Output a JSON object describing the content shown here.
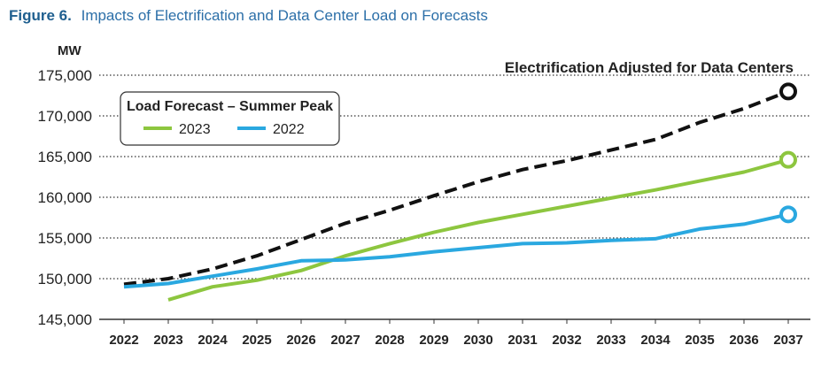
{
  "figure": {
    "label": "Figure 6.",
    "title": "Impacts of Electrification and Data Center Load on Forecasts"
  },
  "chart_data": {
    "type": "line",
    "ylabel": "MW",
    "ylim": [
      145000,
      175000
    ],
    "yticks": [
      175000,
      170000,
      165000,
      160000,
      155000,
      150000,
      145000
    ],
    "ytick_labels": [
      "175,000",
      "170,000",
      "165,000",
      "160,000",
      "155,000",
      "150,000",
      "145,000"
    ],
    "x": [
      2022,
      2023,
      2024,
      2025,
      2026,
      2027,
      2028,
      2029,
      2030,
      2031,
      2032,
      2033,
      2034,
      2035,
      2036,
      2037
    ],
    "x_labels": [
      "2022",
      "2023",
      "2024",
      "2025",
      "2026",
      "2027",
      "2028",
      "2029",
      "2030",
      "2031",
      "2032",
      "2033",
      "2034",
      "2035",
      "2036",
      "2037"
    ],
    "grid": "horizontal dotted",
    "legend": {
      "title": "Load Forecast – Summer Peak",
      "placement": "top-left"
    },
    "series": [
      {
        "name": "Electrification Adjusted for Data Centers",
        "color": "#111111",
        "style": "dashed",
        "in_legend": false,
        "x": [
          2022,
          2023,
          2024,
          2025,
          2026,
          2027,
          2028,
          2029,
          2030,
          2031,
          2032,
          2033,
          2034,
          2035,
          2036,
          2037
        ],
        "values": [
          149300,
          150000,
          151200,
          152800,
          154800,
          156800,
          158400,
          160200,
          161900,
          163400,
          164500,
          165800,
          167100,
          169200,
          170900,
          173000
        ]
      },
      {
        "name": "2023",
        "color": "#8dc63f",
        "style": "solid",
        "in_legend": true,
        "x": [
          2023,
          2024,
          2025,
          2026,
          2027,
          2028,
          2029,
          2030,
          2031,
          2032,
          2033,
          2034,
          2035,
          2036,
          2037
        ],
        "values": [
          147400,
          149000,
          149800,
          151000,
          152800,
          154300,
          155700,
          156900,
          157900,
          158900,
          159900,
          160900,
          162000,
          163100,
          164600
        ]
      },
      {
        "name": "2022",
        "color": "#2aa8e0",
        "style": "solid",
        "in_legend": true,
        "x": [
          2022,
          2023,
          2024,
          2025,
          2026,
          2027,
          2028,
          2029,
          2030,
          2031,
          2032,
          2033,
          2034,
          2035,
          2036,
          2037
        ],
        "values": [
          149000,
          149400,
          150300,
          151200,
          152200,
          152300,
          152700,
          153300,
          153800,
          154300,
          154400,
          154700,
          154900,
          156100,
          156700,
          157900
        ]
      }
    ],
    "annotations": [
      "Electrification Adjusted for Data Centers"
    ]
  }
}
